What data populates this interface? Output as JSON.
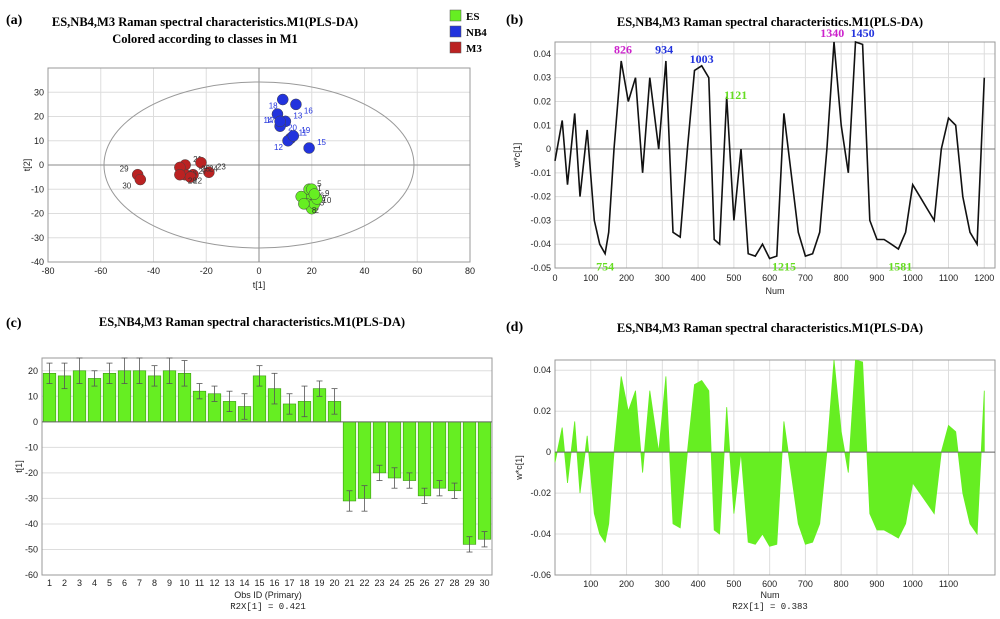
{
  "chart_data": [
    {
      "panel": "(a)",
      "type": "scatter",
      "title": "ES,NB4,M3 Raman spectral characteristics.M1(PLS-DA)",
      "subtitle": "Colored according to classes in M1",
      "xlabel": "t[1]",
      "ylabel": "t[2]",
      "xlim": [
        -80,
        80
      ],
      "ylim": [
        -40,
        40
      ],
      "xticks": [
        -80,
        -60,
        -40,
        -20,
        0,
        20,
        40,
        60,
        80
      ],
      "yticks": [
        -40,
        -30,
        -20,
        -10,
        0,
        10,
        20,
        30
      ],
      "legend": [
        "ES",
        "NB4",
        "M3"
      ],
      "colors": {
        "ES": "#66ee22",
        "NB4": "#2233dd",
        "M3": "#bb2222"
      },
      "series": [
        {
          "name": "ES",
          "points": [
            {
              "label": "1",
              "x": 19,
              "y": -12
            },
            {
              "label": "2",
              "x": 18,
              "y": -16
            },
            {
              "label": "3",
              "x": 20,
              "y": -18
            },
            {
              "label": "4",
              "x": 16,
              "y": -13
            },
            {
              "label": "5",
              "x": 19,
              "y": -10
            },
            {
              "label": "6",
              "x": 20,
              "y": -10
            },
            {
              "label": "7",
              "x": 21,
              "y": -16
            },
            {
              "label": "8",
              "x": 17,
              "y": -16
            },
            {
              "label": "9",
              "x": 22,
              "y": -14
            },
            {
              "label": "10",
              "x": 21,
              "y": -12
            }
          ]
        },
        {
          "name": "NB4",
          "points": [
            {
              "label": "11",
              "x": 12,
              "y": 11
            },
            {
              "label": "12",
              "x": 11,
              "y": 10
            },
            {
              "label": "13",
              "x": 10,
              "y": 18
            },
            {
              "label": "14",
              "x": 7,
              "y": 21
            },
            {
              "label": "15",
              "x": 19,
              "y": 7
            },
            {
              "label": "16",
              "x": 14,
              "y": 25
            },
            {
              "label": "17",
              "x": 8,
              "y": 16
            },
            {
              "label": "18",
              "x": 9,
              "y": 27
            },
            {
              "label": "19",
              "x": 13,
              "y": 12
            },
            {
              "label": "20",
              "x": 8,
              "y": 18
            }
          ]
        },
        {
          "name": "M3",
          "points": [
            {
              "label": "21",
              "x": -28,
              "y": 0
            },
            {
              "label": "22",
              "x": -28,
              "y": -4
            },
            {
              "label": "23",
              "x": -19,
              "y": -3
            },
            {
              "label": "24",
              "x": -22,
              "y": 1
            },
            {
              "label": "25",
              "x": -25,
              "y": -4
            },
            {
              "label": "26",
              "x": -30,
              "y": -1
            },
            {
              "label": "27",
              "x": -26,
              "y": -5
            },
            {
              "label": "28",
              "x": -30,
              "y": -4
            },
            {
              "label": "29",
              "x": -46,
              "y": -4
            },
            {
              "label": "30",
              "x": -45,
              "y": -6
            }
          ]
        }
      ]
    },
    {
      "panel": "(b)",
      "type": "line",
      "title": "ES,NB4,M3 Raman spectral characteristics.M1(PLS-DA)",
      "xlabel": "Num",
      "ylabel": "w*c[1]",
      "xlim": [
        0,
        1230
      ],
      "ylim": [
        -0.05,
        0.045
      ],
      "xticks": [
        0,
        100,
        200,
        300,
        400,
        500,
        600,
        700,
        800,
        900,
        1000,
        1100,
        1200
      ],
      "yticks": [
        -0.05,
        -0.04,
        -0.03,
        -0.02,
        -0.01,
        0,
        0.01,
        0.02,
        0.03,
        0.04
      ],
      "x": [
        0,
        20,
        35,
        55,
        70,
        90,
        110,
        125,
        140,
        150,
        165,
        185,
        205,
        225,
        245,
        265,
        290,
        310,
        330,
        350,
        370,
        390,
        410,
        430,
        445,
        460,
        480,
        500,
        520,
        540,
        560,
        580,
        600,
        620,
        640,
        660,
        680,
        700,
        720,
        740,
        760,
        780,
        800,
        820,
        840,
        860,
        880,
        900,
        920,
        940,
        960,
        980,
        1000,
        1020,
        1040,
        1060,
        1080,
        1100,
        1120,
        1140,
        1160,
        1180,
        1200
      ],
      "values": [
        -0.005,
        0.012,
        -0.015,
        0.015,
        -0.02,
        0.008,
        -0.03,
        -0.04,
        -0.044,
        -0.035,
        0.0,
        0.037,
        0.02,
        0.03,
        -0.01,
        0.03,
        0.0,
        0.037,
        -0.035,
        -0.037,
        0.0,
        0.033,
        0.035,
        0.03,
        -0.038,
        -0.04,
        0.022,
        -0.03,
        0.0,
        -0.044,
        -0.045,
        -0.04,
        -0.046,
        -0.045,
        0.015,
        -0.01,
        -0.035,
        -0.045,
        -0.044,
        -0.035,
        0.0,
        0.045,
        0.01,
        -0.01,
        0.045,
        0.044,
        -0.03,
        -0.038,
        -0.038,
        -0.04,
        -0.042,
        -0.035,
        -0.015,
        -0.02,
        -0.025,
        -0.03,
        0.0,
        0.013,
        0.01,
        -0.02,
        -0.035,
        -0.04,
        0.03
      ],
      "annotations": [
        {
          "text": "826",
          "x": 190,
          "y": 0.038,
          "color": "#cc22cc"
        },
        {
          "text": "934",
          "x": 305,
          "y": 0.038,
          "color": "#2233dd"
        },
        {
          "text": "1003",
          "x": 410,
          "y": 0.034,
          "color": "#2233dd"
        },
        {
          "text": "1121",
          "x": 505,
          "y": 0.019,
          "color": "#66dd22"
        },
        {
          "text": "1340",
          "x": 775,
          "y": 0.045,
          "color": "#cc22cc"
        },
        {
          "text": "1450",
          "x": 860,
          "y": 0.045,
          "color": "#2233dd"
        },
        {
          "text": "754",
          "x": 140,
          "y": -0.046,
          "color": "#66dd22"
        },
        {
          "text": "1215",
          "x": 640,
          "y": -0.046,
          "color": "#66dd22"
        },
        {
          "text": "1581",
          "x": 965,
          "y": -0.046,
          "color": "#66dd22"
        }
      ]
    },
    {
      "panel": "(c)",
      "type": "bar",
      "title": "ES,NB4,M3 Raman spectral characteristics.M1(PLS-DA)",
      "xlabel": "Obs ID (Primary)",
      "ylabel": "t[1]",
      "footer": "R2X[1] = 0.421",
      "ylim": [
        -60,
        25
      ],
      "yticks": [
        -60,
        -50,
        -40,
        -30,
        -20,
        -10,
        0,
        10,
        20
      ],
      "categories": [
        "1",
        "2",
        "3",
        "4",
        "5",
        "6",
        "7",
        "8",
        "9",
        "10",
        "11",
        "12",
        "13",
        "14",
        "15",
        "16",
        "17",
        "18",
        "19",
        "20",
        "21",
        "22",
        "23",
        "24",
        "25",
        "26",
        "27",
        "28",
        "29",
        "30"
      ],
      "values": [
        19,
        18,
        20,
        17,
        19,
        20,
        20,
        18,
        20,
        19,
        12,
        11,
        8,
        6,
        18,
        13,
        7,
        8,
        13,
        8,
        -31,
        -30,
        -20,
        -22,
        -23,
        -29,
        -26,
        -27,
        -48,
        -46
      ],
      "errors": [
        4,
        5,
        5,
        3,
        4,
        5,
        5,
        4,
        5,
        5,
        3,
        3,
        4,
        5,
        4,
        6,
        4,
        6,
        3,
        5,
        4,
        5,
        3,
        4,
        3,
        3,
        3,
        3,
        3,
        3
      ],
      "color": "#66ee22"
    },
    {
      "panel": "(d)",
      "type": "area",
      "title": "ES,NB4,M3 Raman spectral characteristics.M1(PLS-DA)",
      "xlabel": "Num",
      "ylabel": "w*c[1]",
      "footer": "R2X[1] = 0.383",
      "xlim": [
        0,
        1230
      ],
      "ylim": [
        -0.06,
        0.045
      ],
      "xticks": [
        100,
        200,
        300,
        400,
        500,
        600,
        700,
        800,
        900,
        1000,
        1100
      ],
      "yticks": [
        -0.06,
        -0.04,
        -0.02,
        0,
        0.02,
        0.04
      ],
      "color": "#66ee22"
    }
  ]
}
